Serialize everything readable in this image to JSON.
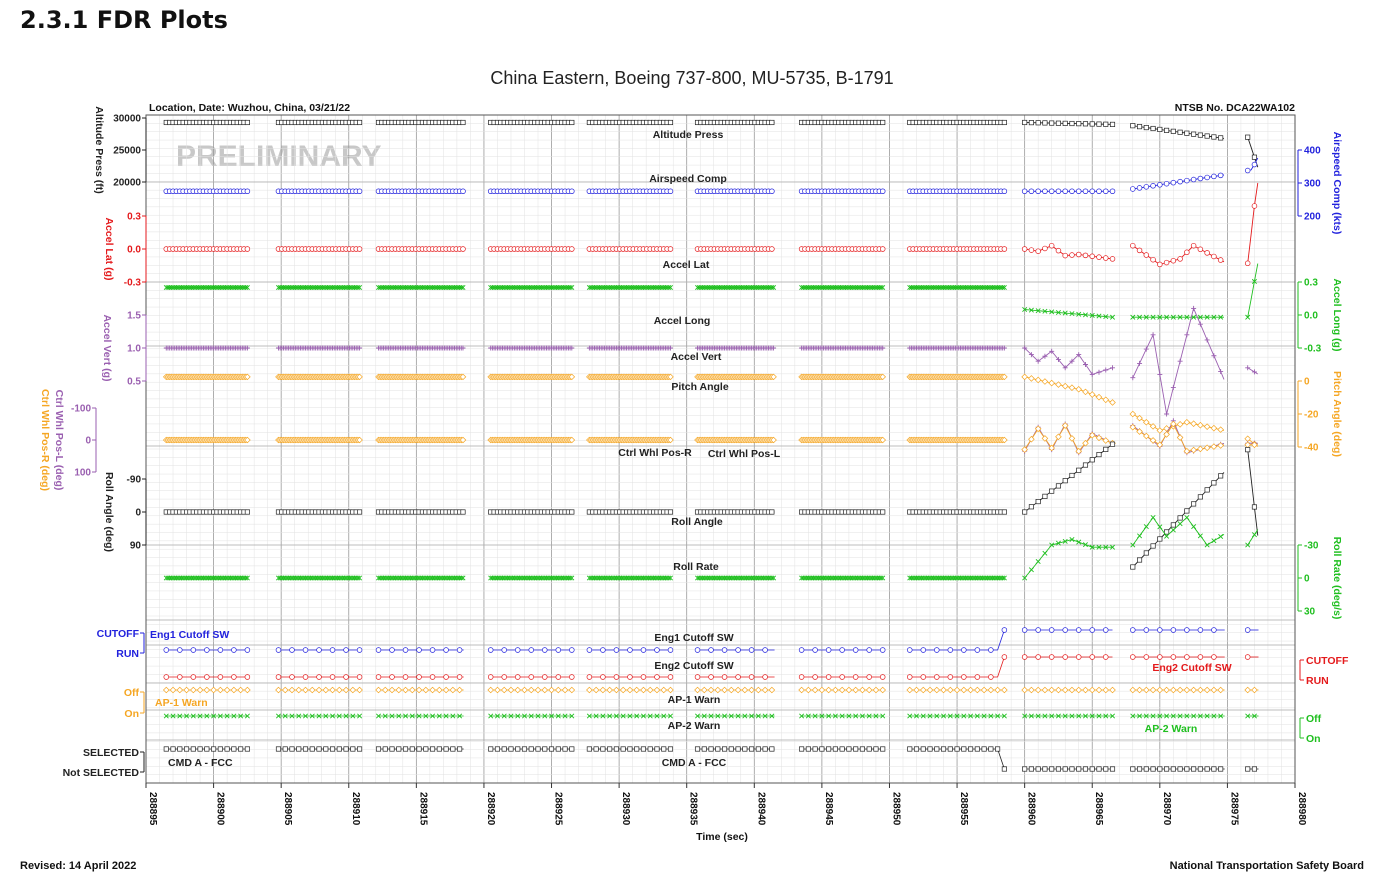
{
  "page": {
    "section_heading": "2.3.1  FDR Plots",
    "footer_left": "Revised: 14 April 2022",
    "footer_right": "National Transportation Safety Board"
  },
  "chart_data": {
    "type": "line",
    "title": "China Eastern, Boeing 737-800, MU-5735, B-1791",
    "location_label": "Location, Date: Wuzhou, China, 03/21/22",
    "case_label": "NTSB No. DCA22WA102",
    "watermark": "PRELIMINARY",
    "xlabel": "Time (sec)",
    "xlim": [
      288895,
      288980
    ],
    "xticks": [
      "288895",
      "288900",
      "288905",
      "288910",
      "288915",
      "288920",
      "288925",
      "288930",
      "288935",
      "288940",
      "288945",
      "288950",
      "288955",
      "288960",
      "288965",
      "288970",
      "288975",
      "288980"
    ],
    "segments": [
      [
        288896.5,
        288902.5
      ],
      [
        288904.8,
        288910.8
      ],
      [
        288912.2,
        288918.5
      ],
      [
        288920.5,
        288926.5
      ],
      [
        288927.8,
        288933.8
      ],
      [
        288935.8,
        288941.5
      ],
      [
        288943.5,
        288949.5
      ],
      [
        288951.5,
        288958.5
      ],
      [
        288960,
        288966.5
      ],
      [
        288968,
        288974.8
      ],
      [
        288976.5,
        288977.3
      ]
    ],
    "colors": {
      "black": "#222222",
      "blue": "#2222dd",
      "red": "#e41a1c",
      "green": "#1fbf1f",
      "purple": "#9a5fb0",
      "orange": "#f5a623"
    },
    "axes_left": [
      {
        "label": "Altitude Press (ft)",
        "color": "black",
        "ticks": [
          "30000",
          "25000",
          "20000"
        ]
      },
      {
        "label": "Accel Lat (g)",
        "color": "red",
        "ticks": [
          "0.3",
          "0.0",
          "-0.3"
        ]
      },
      {
        "label": "Accel Vert (g)",
        "color": "purple",
        "ticks": [
          "1.5",
          "1.0",
          "0.5"
        ]
      },
      {
        "label": "Ctrl Whl Pos-L (deg)",
        "color": "purple",
        "ticks": [
          "-100",
          "0",
          "100"
        ]
      },
      {
        "label": "Ctrl Whl Pos-R (deg)",
        "color": "orange",
        "ticks": []
      },
      {
        "label": "Roll Angle (deg)",
        "color": "black",
        "ticks": [
          "-90",
          "0",
          "90"
        ]
      }
    ],
    "axes_right": [
      {
        "label": "Airspeed Comp (kts)",
        "color": "blue",
        "ticks": [
          "400",
          "300",
          "200"
        ]
      },
      {
        "label": "Accel Long (g)",
        "color": "green",
        "ticks": [
          "0.3",
          "0.0",
          "-0.3"
        ]
      },
      {
        "label": "Pitch Angle (deg)",
        "color": "orange",
        "ticks": [
          "0",
          "-20",
          "-40"
        ]
      },
      {
        "label": "Roll Rate (deg/s)",
        "color": "green",
        "ticks": [
          "-30",
          "0",
          "30"
        ]
      }
    ],
    "discrete_axes_left": [
      {
        "label": "CUTOFF",
        "color": "blue"
      },
      {
        "label": "RUN",
        "color": "blue"
      },
      {
        "label": "Off",
        "color": "orange"
      },
      {
        "label": "On",
        "color": "orange"
      },
      {
        "label": "SELECTED",
        "color": "black"
      },
      {
        "label": "Not SELECTED",
        "color": "black"
      }
    ],
    "discrete_axes_right": [
      {
        "label": "CUTOFF",
        "color": "red"
      },
      {
        "label": "RUN",
        "color": "red"
      },
      {
        "label": "Off",
        "color": "green"
      },
      {
        "label": "On",
        "color": "green"
      }
    ],
    "series_labels": [
      {
        "text": "Altitude Press",
        "color": "black"
      },
      {
        "text": "Airspeed Comp",
        "color": "black"
      },
      {
        "text": "Accel Lat",
        "color": "black"
      },
      {
        "text": "Accel Long",
        "color": "black"
      },
      {
        "text": "Accel Vert",
        "color": "black"
      },
      {
        "text": "Pitch Angle",
        "color": "black"
      },
      {
        "text": "Ctrl Whl Pos-R",
        "color": "black"
      },
      {
        "text": "Ctrl Whl Pos-L",
        "color": "black"
      },
      {
        "text": "Roll Angle",
        "color": "black"
      },
      {
        "text": "Roll Rate",
        "color": "black"
      },
      {
        "text": "Eng1 Cutoff SW",
        "color": "black"
      },
      {
        "text": "Eng1 Cutoff SW",
        "color": "blue"
      },
      {
        "text": "Eng2 Cutoff SW",
        "color": "black"
      },
      {
        "text": "Eng2 Cutoff SW",
        "color": "red"
      },
      {
        "text": "AP-1 Warn",
        "color": "black"
      },
      {
        "text": "AP-1 Warn",
        "color": "orange"
      },
      {
        "text": "AP-2 Warn",
        "color": "black"
      },
      {
        "text": "AP-2 Warn",
        "color": "green"
      },
      {
        "text": "CMD A - FCC",
        "color": "black"
      },
      {
        "text": "CMD A - FCC",
        "color": "black"
      }
    ],
    "series": [
      {
        "name": "Altitude Press",
        "unit": "ft",
        "color": "black",
        "marker": "square",
        "cruise": 29300,
        "late": [
          [
            288960,
            29300
          ],
          [
            288966.5,
            29000
          ],
          [
            288968,
            28800
          ],
          [
            288974.8,
            26800
          ],
          [
            288976.5,
            27000
          ],
          [
            288977.3,
            22000
          ]
        ]
      },
      {
        "name": "Airspeed Comp",
        "unit": "kts",
        "color": "blue",
        "marker": "circle",
        "cruise": 275,
        "late": [
          [
            288960,
            275
          ],
          [
            288966.5,
            275
          ],
          [
            288968,
            282
          ],
          [
            288974.8,
            325
          ],
          [
            288976.8,
            340
          ],
          [
            288977.3,
            380
          ]
        ]
      },
      {
        "name": "Accel Lat",
        "unit": "g",
        "color": "red",
        "marker": "circle",
        "cruise": 0.0,
        "late": [
          [
            288960,
            0.0
          ],
          [
            288961,
            -0.02
          ],
          [
            288962,
            0.03
          ],
          [
            288963,
            -0.06
          ],
          [
            288964,
            -0.05
          ],
          [
            288966.5,
            -0.09
          ],
          [
            288968,
            0.03
          ],
          [
            288970,
            -0.14
          ],
          [
            288971.5,
            -0.09
          ],
          [
            288972.5,
            0.03
          ],
          [
            288974.8,
            -0.12
          ],
          [
            288976.5,
            -0.13
          ],
          [
            288977.2,
            0.6
          ]
        ]
      },
      {
        "name": "Accel Long",
        "unit": "g",
        "color": "green",
        "marker": "x",
        "cruise": 0.25,
        "late": [
          [
            288960,
            0.05
          ],
          [
            288966.5,
            -0.02
          ],
          [
            288968,
            -0.02
          ],
          [
            288974.8,
            -0.02
          ],
          [
            288976.5,
            -0.02
          ],
          [
            288977.3,
            0.5
          ]
        ]
      },
      {
        "name": "Accel Vert",
        "unit": "g",
        "color": "purple",
        "marker": "plus",
        "cruise": 1.0,
        "late": [
          [
            288960,
            1.0
          ],
          [
            288961,
            0.8
          ],
          [
            288962,
            0.95
          ],
          [
            288963,
            0.7
          ],
          [
            288964,
            0.9
          ],
          [
            288965,
            0.6
          ],
          [
            288966.5,
            0.7
          ],
          [
            288968,
            0.55
          ],
          [
            288969.5,
            1.2
          ],
          [
            288970.5,
            0.0
          ],
          [
            288972.5,
            1.6
          ],
          [
            288974.8,
            0.5
          ],
          [
            288976.5,
            0.7
          ],
          [
            288977.3,
            0.6
          ]
        ]
      },
      {
        "name": "Pitch Angle",
        "unit": "deg",
        "color": "orange",
        "marker": "diamond",
        "cruise": 2.5,
        "late": [
          [
            288960,
            2.5
          ],
          [
            288964,
            -5
          ],
          [
            288966.5,
            -13
          ],
          [
            288968,
            -20
          ],
          [
            288970,
            -30
          ],
          [
            288972,
            -25
          ],
          [
            288974.8,
            -30
          ],
          [
            288976.5,
            -35
          ],
          [
            288977.3,
            -40
          ]
        ]
      },
      {
        "name": "Ctrl Whl Pos-L",
        "unit": "deg",
        "color": "purple",
        "marker": "plus",
        "cruise": 0,
        "late": [
          [
            288960,
            35
          ],
          [
            288961,
            -40
          ],
          [
            288962,
            30
          ],
          [
            288963,
            -50
          ],
          [
            288964,
            40
          ],
          [
            288965,
            -20
          ],
          [
            288966.5,
            10
          ],
          [
            288968,
            -45
          ],
          [
            288970,
            20
          ],
          [
            288971,
            -60
          ],
          [
            288972,
            40
          ],
          [
            288974.8,
            10
          ]
        ]
      },
      {
        "name": "Ctrl Whl Pos-R",
        "unit": "deg",
        "color": "orange",
        "marker": "diamond",
        "cruise": 0,
        "late": [
          [
            288960,
            30
          ],
          [
            288961,
            -35
          ],
          [
            288962,
            25
          ],
          [
            288963,
            -45
          ],
          [
            288964,
            35
          ],
          [
            288965,
            -15
          ],
          [
            288966.5,
            10
          ],
          [
            288968,
            -40
          ],
          [
            288970,
            15
          ],
          [
            288971,
            -50
          ],
          [
            288972,
            35
          ],
          [
            288974.8,
            15
          ]
        ]
      },
      {
        "name": "Roll Angle",
        "unit": "deg",
        "color": "black",
        "marker": "square",
        "cruise": 0,
        "late": [
          [
            288960,
            0
          ],
          [
            288966.5,
            -185
          ],
          [
            288966.6,
            195
          ],
          [
            288968,
            150
          ],
          [
            288974.8,
            -110
          ],
          [
            288976.5,
            -170
          ],
          [
            288977.3,
            80
          ]
        ]
      },
      {
        "name": "Roll Rate",
        "unit": "deg/s",
        "color": "green",
        "marker": "x",
        "cruise": 0,
        "late": [
          [
            288960,
            0
          ],
          [
            288961,
            -15
          ],
          [
            288962,
            -30
          ],
          [
            288963.5,
            -35
          ],
          [
            288965,
            -28
          ],
          [
            288966.5,
            -28
          ],
          [
            288968,
            -30
          ],
          [
            288969.5,
            -55
          ],
          [
            288970.5,
            -38
          ],
          [
            288972,
            -55
          ],
          [
            288973.5,
            -30
          ],
          [
            288974.8,
            -40
          ],
          [
            288976.5,
            -30
          ],
          [
            288977.3,
            -45
          ]
        ]
      },
      {
        "name": "Eng1 Cutoff SW",
        "color": "blue",
        "marker": "circle",
        "states": "RUN until 288958.4, CUTOFF after"
      },
      {
        "name": "Eng2 Cutoff SW",
        "color": "red",
        "marker": "circle",
        "states": "RUN until 288958.4, CUTOFF after"
      },
      {
        "name": "AP-1 Warn",
        "color": "orange",
        "marker": "diamond",
        "states": "Off, brief On at 288960"
      },
      {
        "name": "AP-2 Warn",
        "color": "green",
        "marker": "x",
        "states": "On, brief Off at 288960"
      },
      {
        "name": "CMD A - FCC",
        "color": "black",
        "marker": "square",
        "states": "SELECTED until 288958.5, Not SELECTED after"
      }
    ]
  }
}
